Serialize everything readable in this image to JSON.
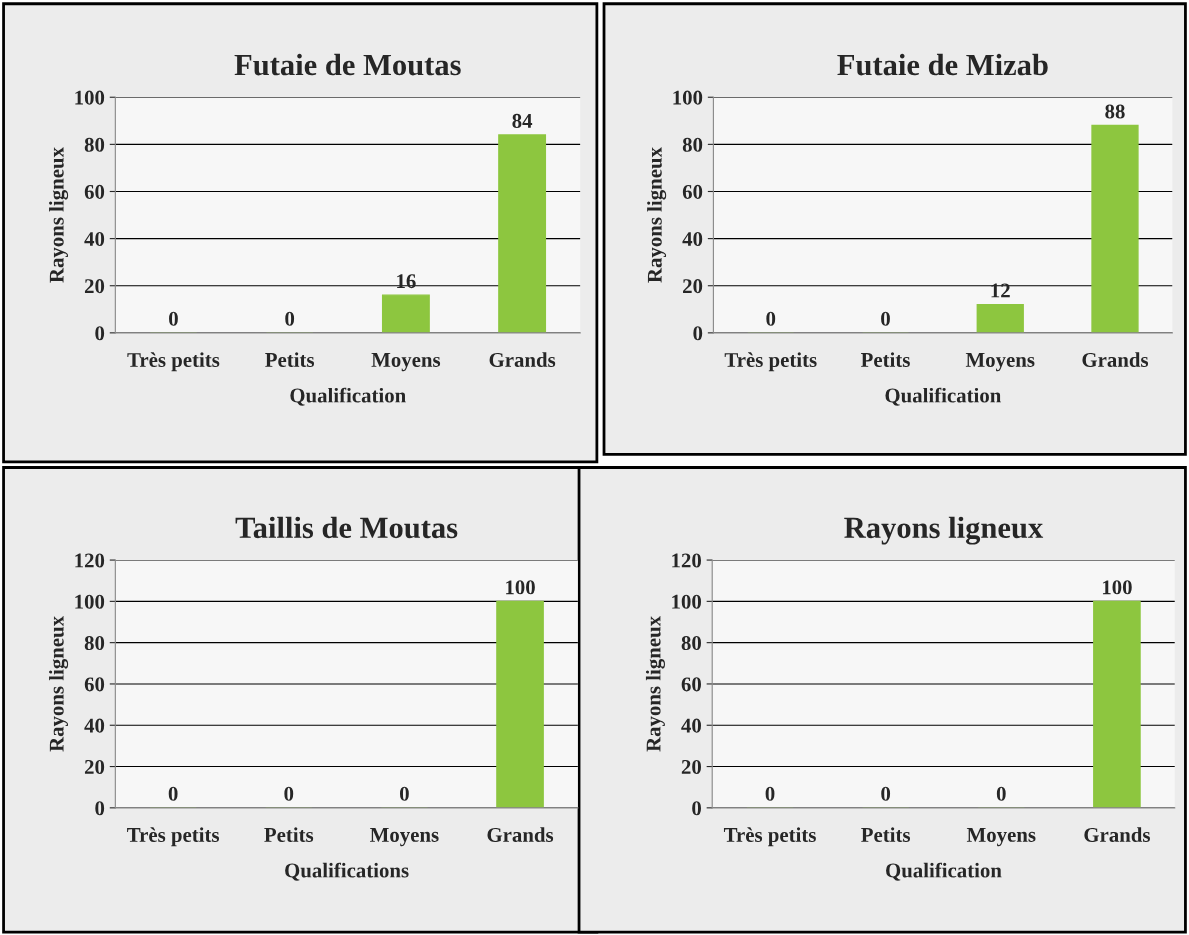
{
  "chart_data": [
    {
      "type": "bar",
      "title": "Futaie de Moutas",
      "xlabel": "Qualification",
      "ylabel": "Rayons ligneux",
      "categories": [
        "Très petits",
        "Petits",
        "Moyens",
        "Grands"
      ],
      "values": [
        0,
        0,
        16,
        84
      ],
      "color": "#8dc63f",
      "ylim": [
        0,
        100
      ],
      "yticks": [
        0,
        20,
        40,
        60,
        80,
        100
      ],
      "grid": "y",
      "data_labels": true
    },
    {
      "type": "bar",
      "title": "Futaie de Mizab",
      "xlabel": "Qualification",
      "ylabel": "Rayons ligneux",
      "categories": [
        "Très petits",
        "Petits",
        "Moyens",
        "Grands"
      ],
      "values": [
        0,
        0,
        12,
        88
      ],
      "color": "#8dc63f",
      "ylim": [
        0,
        100
      ],
      "yticks": [
        0,
        20,
        40,
        60,
        80,
        100
      ],
      "grid": "y",
      "data_labels": true
    },
    {
      "type": "bar",
      "title": "Taillis de Moutas",
      "xlabel": "Qualifications",
      "ylabel": "Rayons ligneux",
      "categories": [
        "Très petits",
        "Petits",
        "Moyens",
        "Grands"
      ],
      "values": [
        0,
        0,
        0,
        100
      ],
      "color": "#8dc63f",
      "ylim": [
        0,
        120
      ],
      "yticks": [
        0,
        20,
        40,
        60,
        80,
        100,
        120
      ],
      "grid": "y",
      "data_labels": true
    },
    {
      "type": "bar",
      "title": "Rayons ligneux",
      "xlabel": "Qualification",
      "ylabel": "Rayons ligneux",
      "categories": [
        "Très petits",
        "Petits",
        "Moyens",
        "Grands"
      ],
      "values": [
        0,
        0,
        0,
        100
      ],
      "color": "#8dc63f",
      "ylim": [
        0,
        120
      ],
      "yticks": [
        0,
        20,
        40,
        60,
        80,
        100,
        120
      ],
      "grid": "y",
      "data_labels": true
    }
  ]
}
